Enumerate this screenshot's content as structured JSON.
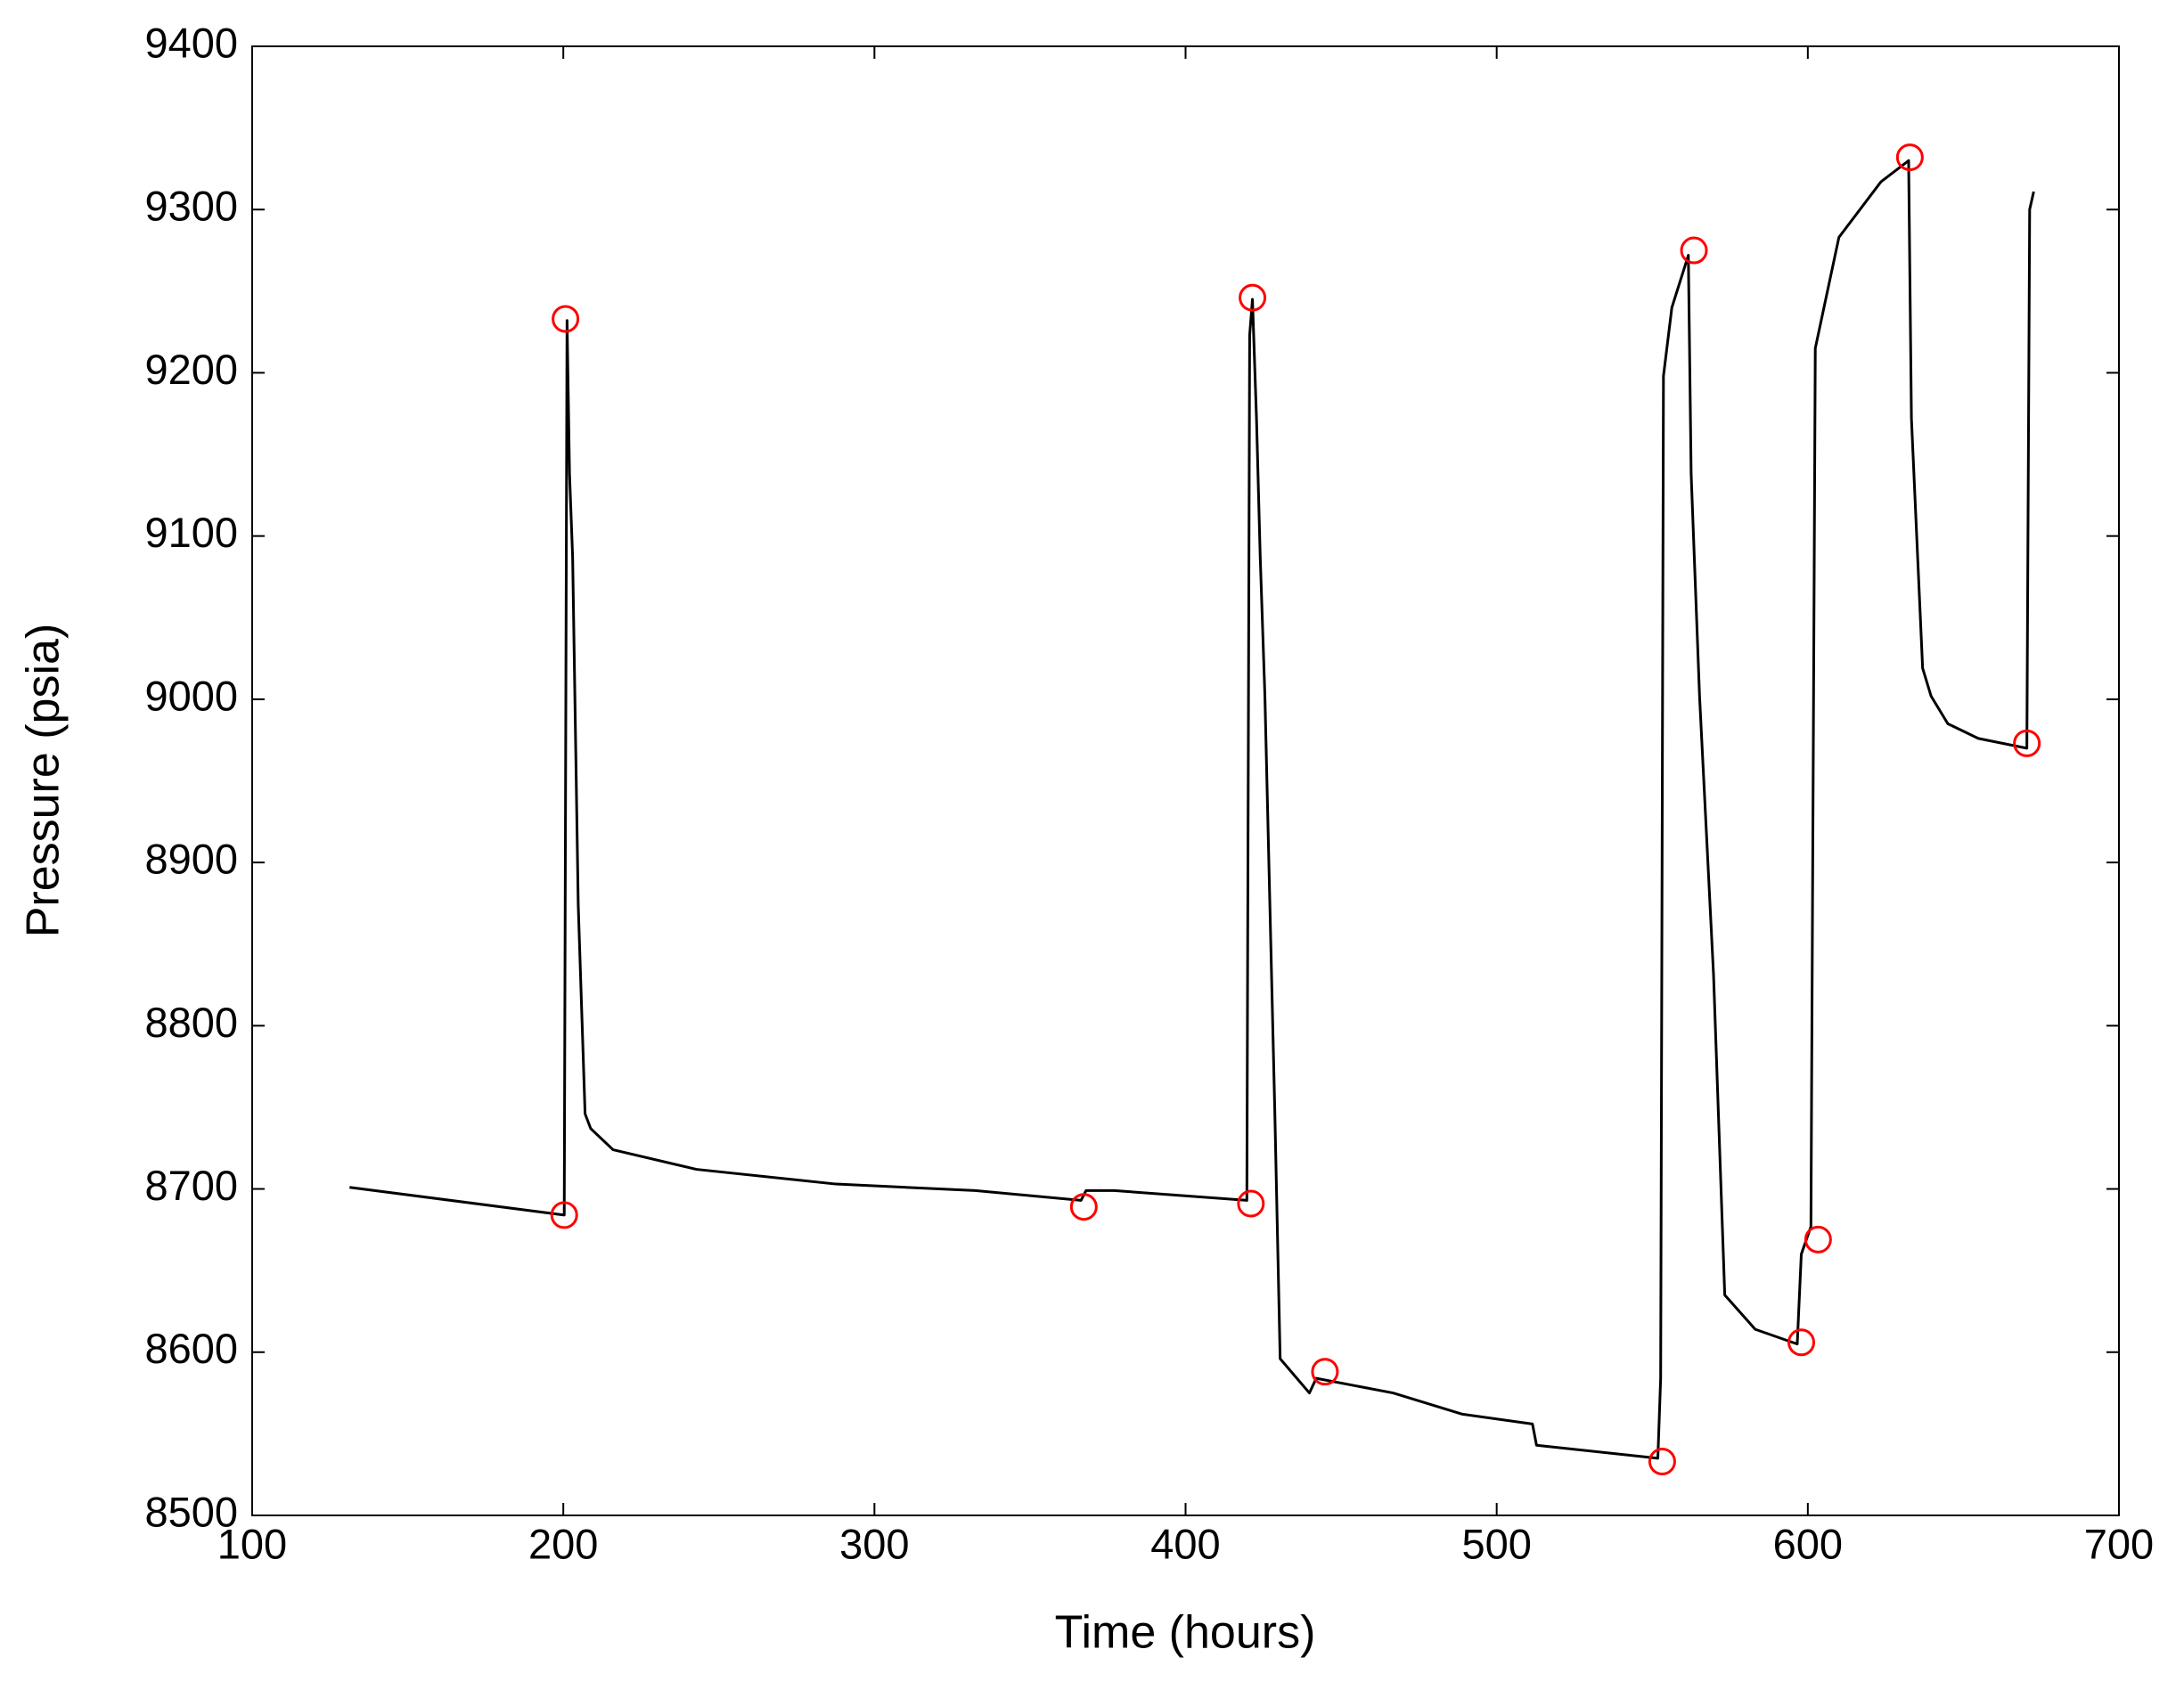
{
  "chart_data": {
    "type": "line",
    "xlabel": "Time (hours)",
    "ylabel": "Pressure (psia)",
    "xlim": [
      100,
      700
    ],
    "xticks": [
      100,
      200,
      300,
      400,
      500,
      600,
      700
    ],
    "ylim": [
      8500,
      9400
    ],
    "yticks": [
      8500,
      8600,
      8700,
      8800,
      8900,
      9000,
      9100,
      9200,
      9300,
      9400
    ],
    "grid": false,
    "series": [
      {
        "color": "#000000",
        "style": "line",
        "x": [
          131.3,
          200.3,
          201.2,
          202,
          203,
          204.8,
          207,
          208.8,
          216,
          242.8,
          287.6,
          332.4,
          366.4,
          368,
          377,
          419.7,
          420.6,
          421.5,
          422.8,
          424,
          425.5,
          428.7,
          430.4,
          439.8,
          442,
          466.7,
          489,
          511.5,
          512.8,
          551.8,
          552.7,
          553.6,
          556.3,
          561.6,
          562.5,
          565.2,
          569.7,
          573.3,
          583.1,
          596.6,
          597.9,
          601,
          602.4,
          610,
          623.5,
          632.4,
          633.3,
          636.9,
          639.6,
          645,
          654.8,
          670.4,
          671.3,
          672.6
        ],
        "values": [
          8701,
          8684,
          9232,
          9138,
          9087,
          8874,
          8746,
          8737,
          8724,
          8712,
          8703,
          8699,
          8693,
          8699,
          8699,
          8693,
          9223,
          9245,
          9172,
          9087,
          9002,
          8746,
          8596,
          8575,
          8584,
          8575,
          8562,
          8556,
          8543,
          8535,
          8584,
          9198,
          9240,
          9272,
          9138,
          9002,
          8831,
          8635,
          8614,
          8605,
          8660,
          8677,
          9215,
          9283,
          9317,
          9330,
          9172,
          9019,
          9002,
          8985,
          8976,
          8970,
          9300,
          9311
        ]
      },
      {
        "color": "#ff0000",
        "style": "circle",
        "x": [
          200.7,
          200.3,
          367.3,
          421.5,
          421,
          444.8,
          553.2,
          563.4,
          597.9,
          603.3,
          632.8,
          670.4
        ],
        "values": [
          9233,
          8684,
          8689,
          9246,
          8691,
          8588,
          8533,
          9275,
          8606,
          8669,
          9332,
          8973
        ]
      }
    ]
  }
}
